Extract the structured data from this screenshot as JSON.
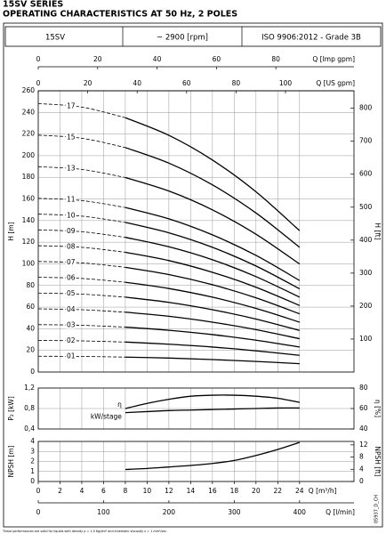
{
  "title": "15SV SERIES",
  "subtitle": "OPERATING CHARACTERISTICS AT 50 Hz, 2 POLES",
  "header": {
    "model": "15SV",
    "speed": "~ 2900 [rpm]",
    "standard": "ISO 9906:2012 - Grade 3B"
  },
  "footnote": "These performances are valid for liquids with density ρ = 1.0 Kg/dm³ and kinematic viscosity ν = 1 mm²/sec.",
  "code": "05937_D_CH",
  "chart_data": [
    {
      "type": "line",
      "ylabel": "H [m]",
      "y2label": "H [ft]",
      "grid": true,
      "series_labels": "inline",
      "dashed_below_x": 8,
      "xlim": [
        0,
        29
      ],
      "ylim": [
        0,
        260
      ],
      "yticks": [
        0,
        20,
        40,
        60,
        80,
        100,
        120,
        140,
        160,
        180,
        200,
        220,
        240,
        260
      ],
      "y2lim": [
        0,
        853
      ],
      "y2ticks": [
        100,
        200,
        300,
        400,
        500,
        600,
        700,
        800
      ],
      "extra_x_axes": [
        {
          "position": "top",
          "label": "Q [Imp gpm]",
          "xlim": [
            0,
            106.3
          ],
          "xticks": [
            0,
            20,
            40,
            60,
            80
          ]
        },
        {
          "position": "top",
          "label": "Q [US gpm]",
          "xlim": [
            0,
            127.7
          ],
          "xticks": [
            0,
            20,
            40,
            60,
            80,
            100
          ]
        }
      ],
      "x": [
        0,
        4,
        8,
        12,
        16,
        20,
        24
      ],
      "series": [
        {
          "name": "01",
          "color": "#000000",
          "values": [
            14.6,
            14.4,
            13.8,
            12.9,
            11.5,
            9.8,
            7.7
          ]
        },
        {
          "name": "02",
          "color": "#000000",
          "values": [
            29.2,
            28.8,
            27.7,
            25.7,
            23.1,
            19.6,
            15.4
          ]
        },
        {
          "name": "03",
          "color": "#000000",
          "values": [
            43.8,
            43.2,
            41.5,
            38.6,
            34.6,
            29.4,
            23.1
          ]
        },
        {
          "name": "04",
          "color": "#000000",
          "values": [
            58.4,
            57.6,
            55.3,
            51.5,
            46.1,
            39.2,
            30.8
          ]
        },
        {
          "name": "05",
          "color": "#000000",
          "values": [
            73.0,
            72.0,
            69.2,
            64.4,
            57.6,
            49.0,
            38.4
          ]
        },
        {
          "name": "06",
          "color": "#000000",
          "values": [
            87.6,
            86.5,
            83.0,
            77.2,
            69.2,
            58.8,
            46.1
          ]
        },
        {
          "name": "07",
          "color": "#000000",
          "values": [
            102.2,
            100.9,
            96.8,
            90.1,
            80.7,
            68.6,
            53.8
          ]
        },
        {
          "name": "08",
          "color": "#000000",
          "values": [
            116.8,
            115.3,
            110.7,
            103.0,
            92.2,
            78.4,
            61.5
          ]
        },
        {
          "name": "09",
          "color": "#000000",
          "values": [
            131.4,
            129.7,
            124.5,
            115.8,
            103.8,
            88.2,
            69.2
          ]
        },
        {
          "name": "10",
          "color": "#000000",
          "values": [
            146.0,
            144.1,
            138.3,
            128.7,
            115.3,
            98.0,
            76.9
          ]
        },
        {
          "name": "11",
          "color": "#000000",
          "values": [
            160.6,
            158.5,
            152.1,
            141.6,
            126.8,
            107.8,
            84.6
          ]
        },
        {
          "name": "13",
          "color": "#000000",
          "values": [
            189.8,
            187.3,
            179.8,
            167.3,
            149.9,
            127.4,
            99.9
          ]
        },
        {
          "name": "15",
          "color": "#000000",
          "values": [
            219.0,
            216.1,
            207.5,
            193.1,
            173.0,
            147.0,
            115.3
          ]
        },
        {
          "name": "17",
          "color": "#000000",
          "values": [
            248.2,
            244.9,
            235.1,
            218.8,
            196.0,
            166.6,
            130.7
          ]
        }
      ]
    },
    {
      "type": "line",
      "ylabel": "P₂ [kW]",
      "y2label": "η [%]",
      "grid": true,
      "series_labels": "start",
      "xlim": [
        0,
        29
      ],
      "ylim": [
        0.4,
        1.2
      ],
      "yticks": [
        {
          "value": 0.4,
          "label": "0,4"
        },
        {
          "value": 0.8,
          "label": "0,8"
        },
        {
          "value": 1.2,
          "label": "1,2"
        }
      ],
      "y2lim": [
        40,
        80
      ],
      "y2ticks": [
        40,
        60,
        80
      ],
      "x": [
        8,
        10,
        12,
        14,
        16,
        18,
        20,
        22,
        24
      ],
      "series": [
        {
          "name": "η",
          "axis": "y2",
          "color": "#000000",
          "values": [
            60,
            65,
            69,
            72,
            73,
            73,
            72,
            70,
            66
          ]
        },
        {
          "name": "kW/stage",
          "color": "#000000",
          "values": [
            0.72,
            0.74,
            0.76,
            0.77,
            0.78,
            0.79,
            0.8,
            0.81,
            0.81
          ]
        }
      ]
    },
    {
      "type": "line",
      "ylabel": "NPSH [m]",
      "y2label": "NPSH [ft]",
      "grid": true,
      "xlim": [
        0,
        29
      ],
      "ylim": [
        0,
        4
      ],
      "yticks": [
        0,
        1,
        2,
        3,
        4
      ],
      "y2lim": [
        0,
        13.12
      ],
      "y2ticks": [
        0,
        4,
        8,
        12
      ],
      "xlabel": "Q [m³/h]",
      "xticks": [
        0,
        2,
        4,
        6,
        8,
        10,
        12,
        14,
        16,
        18,
        20,
        22,
        24
      ],
      "extra_x_axes": [
        {
          "position": "bottom",
          "label": "Q [l/min]",
          "xlim": [
            0,
            483.3
          ],
          "xticks": [
            0,
            100,
            200,
            300,
            400
          ]
        }
      ],
      "x": [
        8,
        10,
        12,
        14,
        16,
        18,
        20,
        22,
        24
      ],
      "series": [
        {
          "color": "#000000",
          "values": [
            1.2,
            1.3,
            1.45,
            1.6,
            1.8,
            2.1,
            2.6,
            3.2,
            3.9
          ]
        }
      ]
    }
  ]
}
